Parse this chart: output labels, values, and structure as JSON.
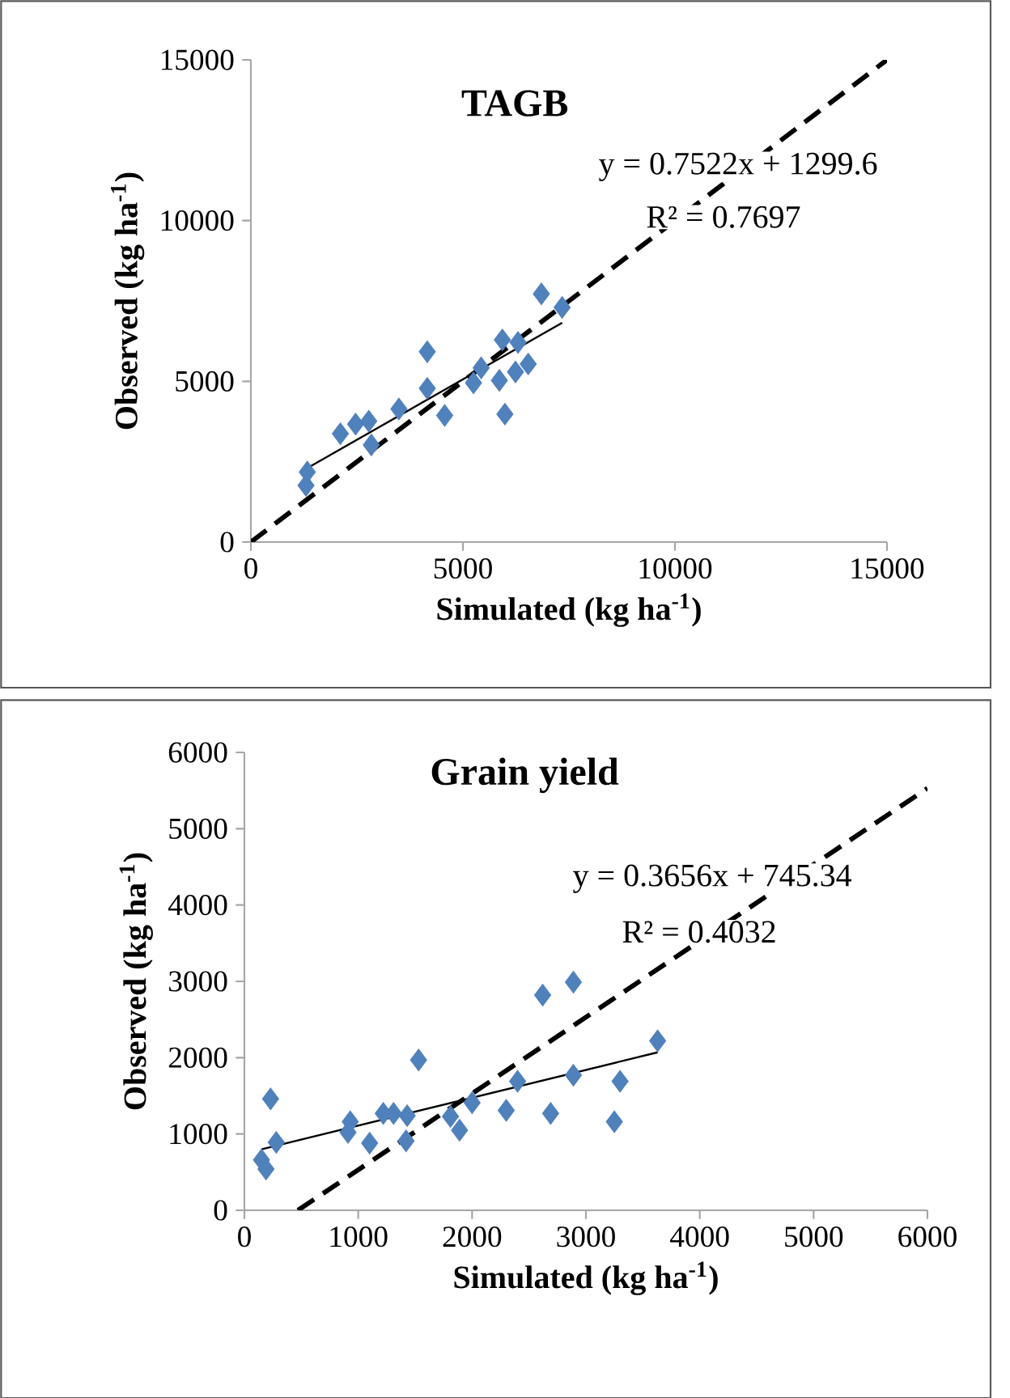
{
  "chart_data": [
    {
      "type": "scatter",
      "title": "TAGB",
      "xlabel": "Simulated (kg ha$^{-1}$)",
      "ylabel": "Observed (kg ha$^{-1}$)",
      "annotations": [
        "y = 0.7522x + 1299.6",
        "R² = 0.7697"
      ],
      "xlim": [
        0,
        15000
      ],
      "ylim": [
        0,
        15000
      ],
      "xticks": [
        0,
        5000,
        10000,
        15000
      ],
      "yticks": [
        0,
        5000,
        10000,
        15000
      ],
      "grid": false,
      "series": [
        {
          "color": "#4f81bd",
          "marker": "diamond",
          "x": [
            1330,
            1300,
            2110,
            2470,
            2780,
            2840,
            3490,
            4160,
            4160,
            4570,
            5430,
            5250,
            5930,
            5990,
            5860,
            6300,
            6540,
            6240,
            6850,
            7340
          ],
          "values": [
            2180,
            1760,
            3370,
            3670,
            3760,
            3020,
            4140,
            5920,
            4780,
            3940,
            5420,
            4950,
            6290,
            3980,
            5030,
            6210,
            5540,
            5290,
            7720,
            7300
          ]
        },
        {
          "type": "line",
          "color": "#000000",
          "line_style": "solid",
          "x": [
            1300,
            7340
          ],
          "values": [
            2280,
            6820
          ]
        },
        {
          "type": "line",
          "color": "#000000",
          "line_style": "dashed",
          "x": [
            0,
            15000
          ],
          "values": [
            0,
            15000
          ]
        }
      ]
    },
    {
      "type": "scatter",
      "title": "Grain yield",
      "xlabel": "Simulated (kg ha$^{-1}$)",
      "ylabel": "Observed (kg ha$^{-1}$)",
      "annotations": [
        "y = 0.3656x + 745.34",
        "R² = 0.4032"
      ],
      "xlim": [
        0,
        6000
      ],
      "ylim": [
        0,
        6000
      ],
      "xticks": [
        0,
        1000,
        2000,
        3000,
        4000,
        5000,
        6000
      ],
      "yticks": [
        0,
        1000,
        2000,
        3000,
        4000,
        5000,
        6000
      ],
      "grid": false,
      "series": [
        {
          "color": "#4f81bd",
          "marker": "diamond",
          "x": [
            230,
            280,
            150,
            190,
            930,
            910,
            1100,
            1220,
            1310,
            1430,
            1530,
            1420,
            1810,
            1890,
            2000,
            2300,
            2400,
            2620,
            2690,
            2890,
            2890,
            3250,
            3300,
            3630
          ],
          "values": [
            1460,
            890,
            660,
            540,
            1160,
            1020,
            880,
            1270,
            1270,
            1240,
            1970,
            910,
            1230,
            1050,
            1410,
            1310,
            1690,
            2820,
            1270,
            2990,
            1770,
            1160,
            1690,
            2220
          ]
        },
        {
          "type": "line",
          "color": "#000000",
          "line_style": "solid",
          "x": [
            150,
            3630
          ],
          "values": [
            800,
            2070
          ]
        },
        {
          "type": "line",
          "color": "#000000",
          "line_style": "dashed",
          "x": [
            470,
            6000
          ],
          "values": [
            0,
            5530
          ]
        }
      ]
    }
  ]
}
